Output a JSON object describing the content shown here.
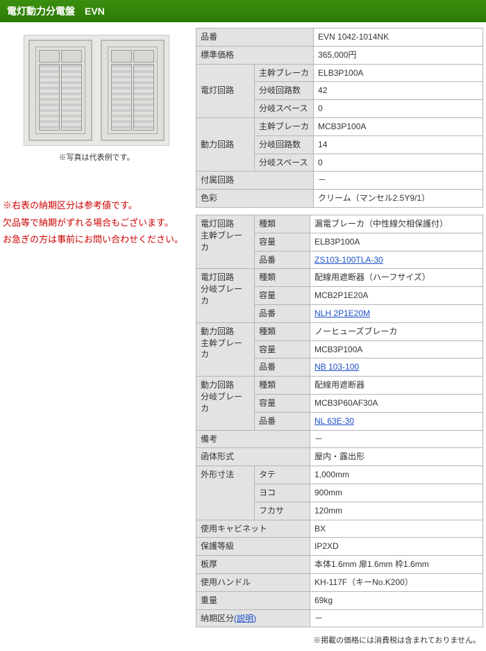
{
  "header": {
    "title": "電灯動力分電盤　EVN"
  },
  "image": {
    "caption": "※写真は代表例です。"
  },
  "notice": {
    "l1": "※右表の納期区分は参考値です。",
    "l2": "欠品等で納期がずれる場合もございます。",
    "l3": "お急ぎの方は事前にお問い合わせください。"
  },
  "table1": {
    "rows": [
      {
        "th1": "品番",
        "val": "EVN 1042-1014NK"
      },
      {
        "th1": "標準価格",
        "val": "365,000円"
      }
    ],
    "group_dentou": {
      "th": "電灯回路",
      "r1": {
        "th": "主幹ブレーカ",
        "val": "ELB3P100A"
      },
      "r2": {
        "th": "分岐回路数",
        "val": "42"
      },
      "r3": {
        "th": "分岐スペース",
        "val": "0"
      }
    },
    "group_douryoku": {
      "th": "動力回路",
      "r1": {
        "th": "主幹ブレーカ",
        "val": "MCB3P100A"
      },
      "r2": {
        "th": "分岐回路数",
        "val": "14"
      },
      "r3": {
        "th": "分岐スペース",
        "val": "0"
      }
    },
    "r_fuzoku": {
      "th": "付属回路",
      "val": "－"
    },
    "r_shikisai": {
      "th": "色彩",
      "val": "クリーム（マンセル2.5Y9/1）"
    }
  },
  "table2": {
    "g1": {
      "th": "電灯回路\n主幹ブレーカ",
      "r1": {
        "th": "種類",
        "val": "漏電ブレーカ（中性線欠相保護付）"
      },
      "r2": {
        "th": "容量",
        "val": "ELB3P100A"
      },
      "r3": {
        "th": "品番",
        "link": "ZS103-100TLA-30"
      }
    },
    "g2": {
      "th": "電灯回路\n分岐ブレーカ",
      "r1": {
        "th": "種類",
        "val": "配線用遮断器（ハーフサイズ）"
      },
      "r2": {
        "th": "容量",
        "val": "MCB2P1E20A"
      },
      "r3": {
        "th": "品番",
        "link": "NLH 2P1E20M"
      }
    },
    "g3": {
      "th": "動力回路\n主幹ブレーカ",
      "r1": {
        "th": "種類",
        "val": "ノーヒューズブレーカ"
      },
      "r2": {
        "th": "容量",
        "val": "MCB3P100A"
      },
      "r3": {
        "th": "品番",
        "link": "NB 103-100"
      }
    },
    "g4": {
      "th": "動力回路\n分岐ブレーカ",
      "r1": {
        "th": "種類",
        "val": "配線用遮断器"
      },
      "r2": {
        "th": "容量",
        "val": "MCB3P60AF30A"
      },
      "r3": {
        "th": "品番",
        "link": "NL 63E-30"
      }
    },
    "r_biko": {
      "th": "備考",
      "val": "－"
    },
    "r_kan": {
      "th": "函体形式",
      "val": "屋内・露出形"
    },
    "g_gaikei": {
      "th": "外形寸法",
      "r1": {
        "th": "タテ",
        "val": "1,000mm"
      },
      "r2": {
        "th": "ヨコ",
        "val": "900mm"
      },
      "r3": {
        "th": "フカサ",
        "val": "120mm"
      }
    },
    "r_cab": {
      "th": "使用キャビネット",
      "val": "BX"
    },
    "r_hogo": {
      "th": "保護等級",
      "val": "IP2XD"
    },
    "r_ita": {
      "th": "板厚",
      "val": "本体1.6mm 扉1.6mm 枠1.6mm"
    },
    "r_handle": {
      "th": "使用ハンドル",
      "val": "KH-117F（キーNo.K200）"
    },
    "r_weight": {
      "th": "重量",
      "val": "69kg"
    },
    "r_nouki": {
      "th_pre": "納期区分",
      "th_link": "(説明)",
      "val": "－"
    }
  },
  "footnote": "※掲載の価格には消費税は含まれておりません。"
}
